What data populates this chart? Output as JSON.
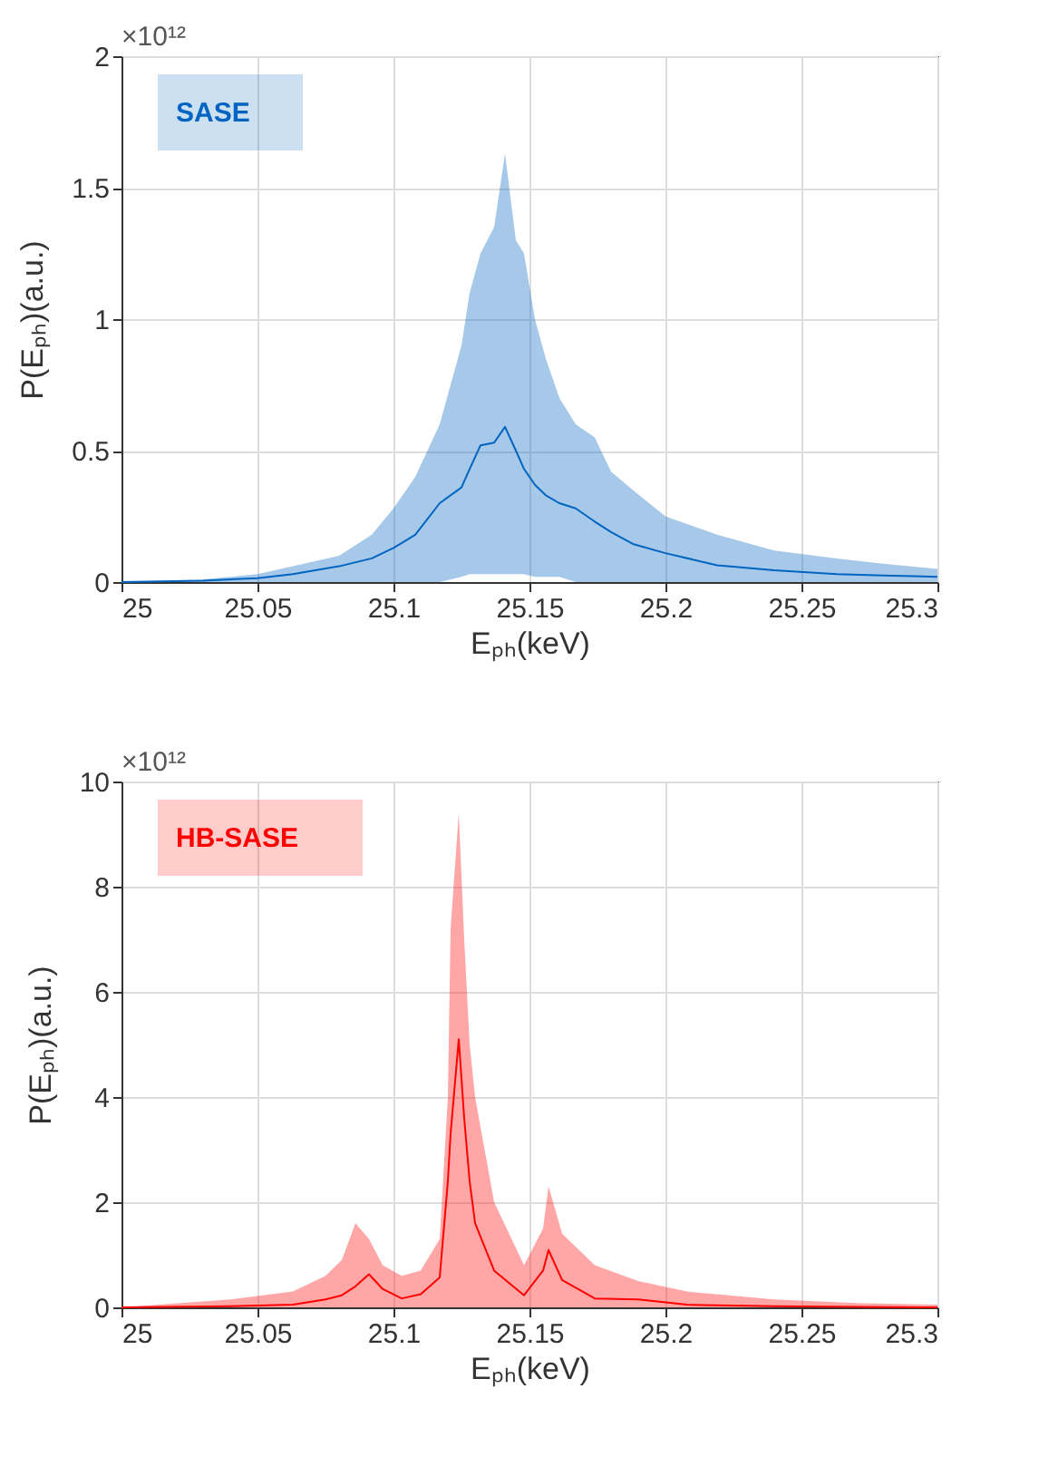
{
  "chart_data": [
    {
      "type": "line",
      "xlabel": "Eₚₕ(keV)",
      "ylabel": "P(Eₚₕ)(a.u.)",
      "annotations": [
        "×10¹²"
      ],
      "xlim": [
        25,
        25.3
      ],
      "xticks": [
        25,
        25.05,
        25.1,
        25.15,
        25.2,
        25.25,
        25.3
      ],
      "ylim": [
        0,
        2
      ],
      "yticks": [
        0,
        0.5,
        1,
        1.5,
        2
      ],
      "grid": true,
      "x": [
        25,
        25.03,
        25.05,
        25.063,
        25.08,
        25.092,
        25.1,
        25.108,
        25.117,
        25.125,
        25.128,
        25.132,
        25.137,
        25.141,
        25.145,
        25.148,
        25.152,
        25.156,
        25.161,
        25.167,
        25.174,
        25.18,
        25.188,
        25.2,
        25.219,
        25.24,
        25.263,
        25.28,
        25.3
      ],
      "series": [
        {
          "name": "SASE",
          "color": "#0064c0",
          "values": [
            0,
            0.005,
            0.015,
            0.03,
            0.06,
            0.09,
            0.13,
            0.18,
            0.3,
            0.36,
            0.43,
            0.52,
            0.53,
            0.59,
            0.5,
            0.43,
            0.37,
            0.33,
            0.3,
            0.28,
            0.23,
            0.19,
            0.145,
            0.11,
            0.064,
            0.045,
            0.03,
            0.025,
            0.02
          ],
          "upper": [
            0,
            0.01,
            0.03,
            0.06,
            0.1,
            0.18,
            0.28,
            0.4,
            0.6,
            0.9,
            1.1,
            1.25,
            1.35,
            1.63,
            1.3,
            1.25,
            1,
            0.85,
            0.7,
            0.6,
            0.55,
            0.42,
            0.35,
            0.25,
            0.18,
            0.12,
            0.09,
            0.07,
            0.05
          ],
          "lower": [
            0,
            0,
            0,
            0,
            0,
            0,
            0,
            0,
            0,
            0.02,
            0.03,
            0.03,
            0.03,
            0.03,
            0.03,
            0.03,
            0.02,
            0.02,
            0.02,
            0,
            0,
            0,
            0,
            0,
            0,
            0,
            0,
            0,
            0
          ]
        }
      ]
    },
    {
      "type": "line",
      "xlabel": "Eₚₕ(keV)",
      "ylabel": "P(Eₚₕ)(a.u.)",
      "annotations": [
        "×10¹²"
      ],
      "xlim": [
        25,
        25.3
      ],
      "xticks": [
        25,
        25.05,
        25.1,
        25.15,
        25.2,
        25.25,
        25.3
      ],
      "ylim": [
        0,
        10
      ],
      "yticks": [
        0,
        2,
        4,
        6,
        8,
        10
      ],
      "grid": true,
      "x": [
        25,
        25.04,
        25.063,
        25.075,
        25.081,
        25.086,
        25.091,
        25.096,
        25.103,
        25.11,
        25.117,
        25.12,
        25.121,
        25.124,
        25.126,
        25.128,
        25.13,
        25.137,
        25.148,
        25.155,
        25.157,
        25.162,
        25.174,
        25.19,
        25.208,
        25.24,
        25.27,
        25.3
      ],
      "series": [
        {
          "name": "HB-SASE",
          "color": "#ff0000",
          "values": [
            0,
            0.02,
            0.05,
            0.15,
            0.23,
            0.4,
            0.63,
            0.35,
            0.17,
            0.25,
            0.57,
            2.4,
            3.3,
            5.1,
            3.6,
            2.4,
            1.6,
            0.7,
            0.23,
            0.7,
            1.09,
            0.52,
            0.17,
            0.15,
            0.05,
            0.02,
            0.01,
            0
          ],
          "upper": [
            0,
            0.15,
            0.3,
            0.6,
            0.9,
            1.6,
            1.3,
            0.8,
            0.6,
            0.7,
            1.3,
            4,
            7.2,
            9.4,
            7,
            5,
            4,
            2,
            0.8,
            1.5,
            2.3,
            1.4,
            0.8,
            0.5,
            0.3,
            0.15,
            0.08,
            0.05
          ],
          "lower": [
            0,
            0,
            0,
            0,
            0,
            0,
            0,
            0,
            0,
            0,
            0,
            0,
            0,
            0,
            0,
            0,
            0,
            0,
            0,
            0,
            0,
            0,
            0,
            0,
            0,
            0,
            0,
            0
          ]
        }
      ]
    }
  ]
}
